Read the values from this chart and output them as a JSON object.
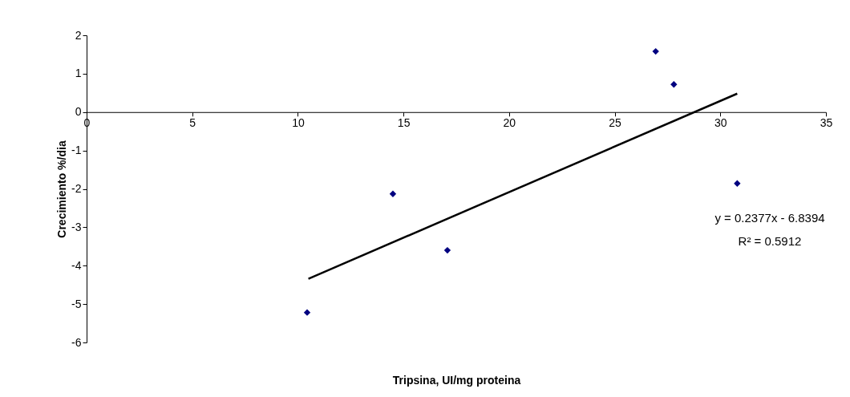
{
  "chart_data": {
    "type": "scatter",
    "xlabel": "Tripsina, UI/mg proteina",
    "ylabel": "Crecimiento %/dia",
    "series": [
      {
        "color": "#000080",
        "marker": "diamond",
        "x": [
          10.44,
          14.5,
          17.08,
          26.94,
          27.8,
          30.8
        ],
        "values": [
          -5.22,
          -2.13,
          -3.6,
          1.58,
          0.72,
          -1.86
        ]
      },
      {
        "type": "line",
        "color": "#000000",
        "x": [
          10.5,
          30.8
        ],
        "values": [
          -4.34,
          0.48
        ]
      }
    ],
    "xlim": [
      0,
      35
    ],
    "xticks": [
      0,
      5,
      10,
      15,
      20,
      25,
      30,
      35
    ],
    "ylim": [
      -6,
      2
    ],
    "yticks": [
      -6,
      -5,
      -4,
      -3,
      -2,
      -1,
      0,
      1,
      2
    ],
    "grid": false,
    "annotations": [
      "y = 0.2377x - 6.8394",
      "R² = 0.5912"
    ]
  }
}
